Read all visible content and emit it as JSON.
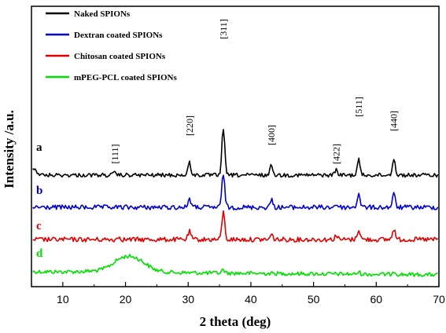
{
  "chart_data": {
    "type": "line",
    "title": "",
    "xlabel": "2 theta (deg)",
    "ylabel": "Intensity /a.u.",
    "xlim": [
      5,
      70
    ],
    "xticks": [
      "10",
      "20",
      "30",
      "40",
      "50",
      "60",
      "70"
    ],
    "grid": false,
    "legend_position": "top-left",
    "series": [
      {
        "name": "Naked SPIONs",
        "letter": "a",
        "color": "#000000",
        "peaks": [
          [
            18.3,
            0.6
          ],
          [
            30.2,
            3.4
          ],
          [
            35.6,
            13.0
          ],
          [
            43.3,
            2.8
          ],
          [
            53.6,
            1.5
          ],
          [
            57.2,
            4.2
          ],
          [
            62.8,
            4.6
          ]
        ]
      },
      {
        "name": "Dextran coated SPIONs",
        "letter": "b",
        "color": "#0000cc",
        "peaks": [
          [
            30.2,
            2.5
          ],
          [
            35.6,
            9.4
          ],
          [
            43.3,
            2.0
          ],
          [
            53.6,
            0.9
          ],
          [
            57.2,
            3.8
          ],
          [
            62.8,
            3.6
          ]
        ]
      },
      {
        "name": "Chitosan coated SPIONs",
        "letter": "c",
        "color": "#e00000",
        "peaks": [
          [
            19.0,
            0.8
          ],
          [
            30.2,
            2.2
          ],
          [
            35.6,
            7.6
          ],
          [
            43.3,
            1.3
          ],
          [
            53.6,
            1.2
          ],
          [
            57.2,
            2.8
          ],
          [
            62.8,
            3.0
          ]
        ]
      },
      {
        "name": "mPEG-PCL coated SPIONs",
        "letter": "d",
        "color": "#00e000",
        "peaks": [
          [
            19.5,
            2.6
          ],
          [
            22.0,
            2.3
          ],
          [
            35.6,
            1.0
          ],
          [
            57.2,
            0.6
          ],
          [
            62.8,
            1.0
          ]
        ]
      }
    ],
    "annotations": [
      "[111]",
      "[220]",
      "[311]",
      "[400]",
      "[422]",
      "[511]",
      "[440]"
    ]
  }
}
